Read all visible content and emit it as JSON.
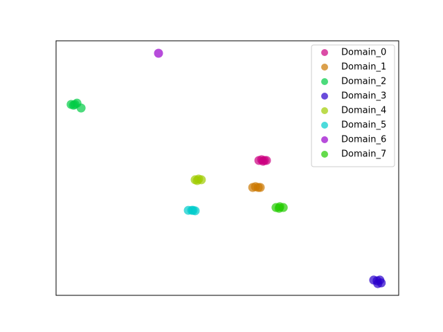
{
  "chart_data": {
    "type": "scatter",
    "xlim": [
      0,
      100
    ],
    "ylim": [
      0,
      100
    ],
    "alpha": 0.7,
    "legend": "upper right",
    "series": [
      {
        "name": "Domain_0",
        "color": "#cc0080",
        "x": [
          59.2,
          60.0,
          60.8,
          61.4,
          60.4
        ],
        "y": [
          53.0,
          53.3,
          53.0,
          53.0,
          52.7
        ]
      },
      {
        "name": "Domain_1",
        "color": "#cc7700",
        "x": [
          57.4,
          58.2,
          59.0,
          59.6
        ],
        "y": [
          42.4,
          42.7,
          42.4,
          42.4
        ]
      },
      {
        "name": "Domain_2",
        "color": "#00cc44",
        "x": [
          4.4,
          5.5,
          6.1,
          7.3,
          5.1
        ],
        "y": [
          75.0,
          75.0,
          75.5,
          73.6,
          74.7
        ]
      },
      {
        "name": "Domain_3",
        "color": "#2a00cc",
        "x": [
          92.7,
          93.7,
          94.5,
          93.9,
          94.9
        ],
        "y": [
          6.0,
          5.7,
          6.0,
          4.6,
          4.9
        ]
      },
      {
        "name": "Domain_4",
        "color": "#a0cc00",
        "x": [
          40.6,
          41.6,
          42.4,
          41.2
        ],
        "y": [
          45.4,
          45.7,
          45.4,
          45.1
        ]
      },
      {
        "name": "Domain_5",
        "color": "#00cccc",
        "x": [
          38.6,
          39.6,
          40.6,
          40.0
        ],
        "y": [
          33.4,
          33.4,
          33.2,
          33.4
        ]
      },
      {
        "name": "Domain_6",
        "color": "#9900cc",
        "x": [
          29.9
        ],
        "y": [
          95.1
        ]
      },
      {
        "name": "Domain_7",
        "color": "#22cc00",
        "x": [
          64.2,
          65.3,
          66.3,
          65.1
        ],
        "y": [
          34.5,
          34.8,
          34.5,
          34.2
        ]
      }
    ]
  }
}
